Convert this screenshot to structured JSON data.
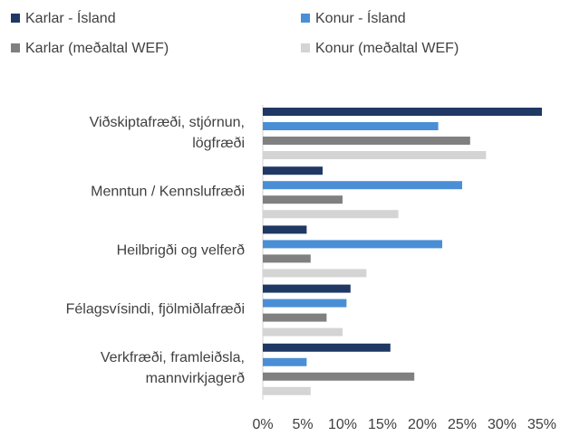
{
  "chart_data": {
    "type": "hbar",
    "categories": [
      "Viðskiptafræði, stjórnun,\nlögfræði",
      "Menntun / Kennslufræði",
      "Heilbrigði og velferð",
      "Félagsvísindi, fjölmiðlafræði",
      "Verkfræði, framleiðsla,\nmannvirkjagerð"
    ],
    "series": [
      {
        "name": "Karlar - Ísland",
        "color": "#1f3864",
        "values": [
          35,
          7.5,
          5.5,
          11,
          16
        ]
      },
      {
        "name": "Konur - Ísland",
        "color": "#4a8fd6",
        "values": [
          22,
          25,
          22.5,
          10.5,
          5.5
        ]
      },
      {
        "name": "Karlar (meðaltal WEF)",
        "color": "#808080",
        "values": [
          26,
          10,
          6,
          8,
          19
        ]
      },
      {
        "name": "Konur (meðaltal WEF)",
        "color": "#d4d4d4",
        "values": [
          28,
          17,
          13,
          10,
          6
        ]
      }
    ],
    "xlim": [
      0,
      35
    ],
    "xticks": [
      {
        "value": 0,
        "label": "0%"
      },
      {
        "value": 5,
        "label": "5%"
      },
      {
        "value": 10,
        "label": "10%"
      },
      {
        "value": 15,
        "label": "15%"
      },
      {
        "value": 20,
        "label": "20%"
      },
      {
        "value": 25,
        "label": "25%"
      },
      {
        "value": 30,
        "label": "30%"
      },
      {
        "value": 35,
        "label": "35%"
      }
    ],
    "legend": "top"
  }
}
